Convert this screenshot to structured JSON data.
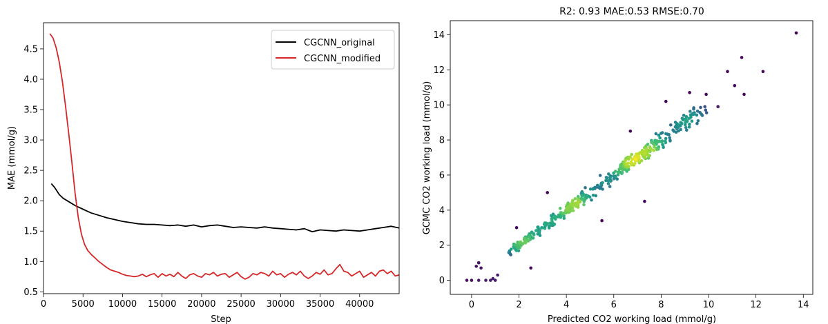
{
  "chart_data": [
    {
      "type": "line",
      "title": "",
      "xlabel": "Step",
      "ylabel": "MAE (mmol/g)",
      "xlim": [
        0,
        45000
      ],
      "ylim": [
        0.47,
        4.93
      ],
      "xticks": [
        0,
        5000,
        10000,
        15000,
        20000,
        25000,
        30000,
        35000,
        40000
      ],
      "xtick_labels": [
        "0",
        "5000",
        "10000",
        "15000",
        "20000",
        "25000",
        "30000",
        "35000",
        "40000"
      ],
      "yticks": [
        0.5,
        1.0,
        1.5,
        2.0,
        2.5,
        3.0,
        3.5,
        4.0,
        4.5
      ],
      "ytick_labels": [
        "0.5",
        "1.0",
        "1.5",
        "2.0",
        "2.5",
        "3.0",
        "3.5",
        "4.0",
        "4.5"
      ],
      "legend_position": "top-right",
      "grid": false,
      "series": [
        {
          "name": "CGCNN_original",
          "color": "#000000",
          "x": [
            1000,
            1400,
            2000,
            2500,
            3000,
            3500,
            4000,
            5000,
            6000,
            7000,
            8000,
            9000,
            10000,
            11000,
            12000,
            13000,
            14000,
            15000,
            16000,
            17000,
            18000,
            19000,
            20000,
            21000,
            22000,
            23000,
            24000,
            25000,
            26000,
            27000,
            28000,
            29000,
            30000,
            31000,
            32000,
            33000,
            34000,
            35000,
            36000,
            37000,
            38000,
            39000,
            40000,
            41000,
            42000,
            43000,
            44000,
            45000
          ],
          "y": [
            2.28,
            2.22,
            2.1,
            2.04,
            2.0,
            1.96,
            1.92,
            1.86,
            1.8,
            1.76,
            1.72,
            1.69,
            1.66,
            1.64,
            1.62,
            1.61,
            1.61,
            1.6,
            1.59,
            1.6,
            1.58,
            1.6,
            1.57,
            1.59,
            1.6,
            1.58,
            1.56,
            1.57,
            1.56,
            1.55,
            1.57,
            1.55,
            1.54,
            1.53,
            1.52,
            1.54,
            1.49,
            1.52,
            1.51,
            1.5,
            1.52,
            1.51,
            1.5,
            1.52,
            1.54,
            1.56,
            1.58,
            1.55
          ]
        },
        {
          "name": "CGCNN_modified",
          "color": "#d62728",
          "x": [
            800,
            1200,
            1600,
            2000,
            2400,
            2800,
            3200,
            3600,
            4000,
            4400,
            4800,
            5200,
            5600,
            6000,
            6500,
            7000,
            7500,
            8000,
            8500,
            9000,
            9500,
            10000,
            10500,
            11000,
            11500,
            12000,
            12500,
            13000,
            13500,
            14000,
            14500,
            15000,
            15500,
            16000,
            16500,
            17000,
            17500,
            18000,
            18500,
            19000,
            19500,
            20000,
            20500,
            21000,
            21500,
            22000,
            22500,
            23000,
            23500,
            24000,
            24500,
            25000,
            25500,
            26000,
            26500,
            27000,
            27500,
            28000,
            28500,
            29000,
            29500,
            30000,
            30500,
            31000,
            31500,
            32000,
            32500,
            33000,
            33500,
            34000,
            34500,
            35000,
            35500,
            36000,
            36500,
            37000,
            37500,
            38000,
            38500,
            39000,
            39500,
            40000,
            40500,
            41000,
            41500,
            42000,
            42500,
            43000,
            43500,
            44000,
            44500,
            45000
          ],
          "y": [
            4.75,
            4.68,
            4.52,
            4.28,
            3.95,
            3.55,
            3.1,
            2.62,
            2.12,
            1.72,
            1.45,
            1.28,
            1.18,
            1.12,
            1.06,
            1.0,
            0.95,
            0.9,
            0.86,
            0.84,
            0.82,
            0.79,
            0.77,
            0.76,
            0.75,
            0.76,
            0.79,
            0.75,
            0.78,
            0.8,
            0.74,
            0.8,
            0.76,
            0.79,
            0.75,
            0.82,
            0.76,
            0.72,
            0.78,
            0.8,
            0.76,
            0.74,
            0.8,
            0.78,
            0.82,
            0.76,
            0.79,
            0.8,
            0.74,
            0.78,
            0.82,
            0.75,
            0.71,
            0.74,
            0.8,
            0.78,
            0.82,
            0.8,
            0.76,
            0.84,
            0.78,
            0.8,
            0.74,
            0.79,
            0.82,
            0.78,
            0.84,
            0.76,
            0.72,
            0.76,
            0.82,
            0.79,
            0.86,
            0.78,
            0.8,
            0.88,
            0.95,
            0.84,
            0.82,
            0.76,
            0.8,
            0.84,
            0.74,
            0.78,
            0.82,
            0.76,
            0.84,
            0.86,
            0.8,
            0.84,
            0.76,
            0.78
          ]
        }
      ]
    },
    {
      "type": "scatter",
      "title": "R2: 0.93 MAE:0.53 RMSE:0.70",
      "xlabel": "Predicted CO2 working load (mmol/g)",
      "ylabel": "GCMC CO2 working load (mmol/g)",
      "xlim": [
        -0.9,
        14.4
      ],
      "ylim": [
        -0.8,
        14.8
      ],
      "xticks": [
        0,
        2,
        4,
        6,
        8,
        10,
        12,
        14
      ],
      "xtick_labels": [
        "0",
        "2",
        "4",
        "6",
        "8",
        "10",
        "12",
        "14"
      ],
      "yticks": [
        0,
        2,
        4,
        6,
        8,
        10,
        12,
        14
      ],
      "ytick_labels": [
        "0",
        "2",
        "4",
        "6",
        "8",
        "10",
        "12",
        "14"
      ],
      "grid": false,
      "colormap": "viridis",
      "color_encodes": "point density",
      "trend": "points cluster tightly along the y = x diagonal from 0 to about 14 mmol/g; the highest density (yellow) lies around 2 to 4 mmol/g and density falls off (purple) towards the ends and at outliers",
      "highlighted_points": [
        {
          "x": -0.2,
          "y": 0.0
        },
        {
          "x": 0.0,
          "y": 0.0
        },
        {
          "x": 0.3,
          "y": 0.0
        },
        {
          "x": 0.6,
          "y": 0.0
        },
        {
          "x": 0.8,
          "y": 0.0
        },
        {
          "x": 0.9,
          "y": 0.1
        },
        {
          "x": 1.0,
          "y": 0.0
        },
        {
          "x": 0.3,
          "y": 1.0
        },
        {
          "x": 0.3,
          "y": 1.0
        },
        {
          "x": 0.2,
          "y": 0.8
        },
        {
          "x": 0.4,
          "y": 0.7
        },
        {
          "x": 11.1,
          "y": 11.1
        },
        {
          "x": 10.8,
          "y": 11.9
        },
        {
          "x": 11.4,
          "y": 12.7
        },
        {
          "x": 12.3,
          "y": 11.9
        },
        {
          "x": 11.5,
          "y": 10.6
        },
        {
          "x": 13.7,
          "y": 14.1
        },
        {
          "x": 9.9,
          "y": 10.6
        },
        {
          "x": 9.2,
          "y": 10.7
        },
        {
          "x": 10.4,
          "y": 9.9
        },
        {
          "x": 8.2,
          "y": 10.2
        },
        {
          "x": 7.3,
          "y": 4.5
        },
        {
          "x": 1.9,
          "y": 3.0
        },
        {
          "x": 6.7,
          "y": 8.5
        },
        {
          "x": 2.5,
          "y": 0.7
        },
        {
          "x": 1.1,
          "y": 0.3
        },
        {
          "x": 3.2,
          "y": 5.0
        },
        {
          "x": 5.5,
          "y": 3.4
        }
      ]
    }
  ]
}
